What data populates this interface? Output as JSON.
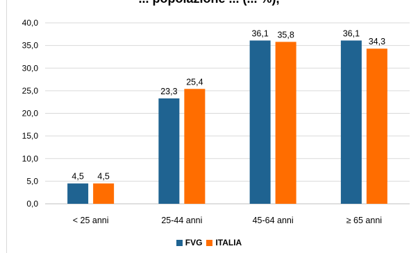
{
  "chart_data": {
    "type": "bar",
    "title": "... popolazione ... (... %),",
    "categories": [
      "< 25 anni",
      "25-44 anni",
      "45-64 anni",
      "≥ 65 anni"
    ],
    "series": [
      {
        "name": "FVG",
        "color": "#1f6391",
        "values": [
          4.5,
          23.3,
          36.1,
          36.1
        ]
      },
      {
        "name": "ITALIA",
        "color": "#ff6d00",
        "values": [
          4.5,
          25.4,
          35.8,
          34.3
        ]
      }
    ],
    "y_ticks": [
      "0,0",
      "5,0",
      "10,0",
      "15,0",
      "20,0",
      "25,0",
      "30,0",
      "35,0",
      "40,0"
    ],
    "ylim": [
      0,
      40
    ],
    "grid": true,
    "legend": "bottom",
    "xlabel": "",
    "ylabel": ""
  }
}
